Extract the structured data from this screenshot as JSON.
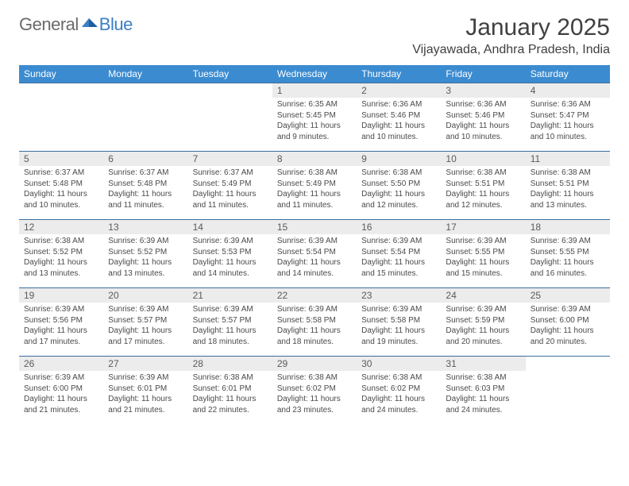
{
  "logo": {
    "text1": "General",
    "text2": "Blue"
  },
  "title": "January 2025",
  "location": "Vijayawada, Andhra Pradesh, India",
  "colors": {
    "header_bg": "#3b8bd0",
    "header_text": "#ffffff",
    "row_border": "#3b6fa0",
    "daynum_bg": "#ececec",
    "logo_blue": "#3b7fc4",
    "logo_gray": "#6a6a6a"
  },
  "fonts": {
    "title_pt": 30,
    "location_pt": 16,
    "dayheader_pt": 12,
    "daynum_pt": 12,
    "details_pt": 10
  },
  "day_headers": [
    "Sunday",
    "Monday",
    "Tuesday",
    "Wednesday",
    "Thursday",
    "Friday",
    "Saturday"
  ],
  "sunrise_label": "Sunrise:",
  "sunset_label": "Sunset:",
  "daylight_label": "Daylight:",
  "weeks": [
    [
      {
        "n": "",
        "sr": "",
        "ss": "",
        "dl": ""
      },
      {
        "n": "",
        "sr": "",
        "ss": "",
        "dl": ""
      },
      {
        "n": "",
        "sr": "",
        "ss": "",
        "dl": ""
      },
      {
        "n": "1",
        "sr": "6:35 AM",
        "ss": "5:45 PM",
        "dl": "11 hours and 9 minutes."
      },
      {
        "n": "2",
        "sr": "6:36 AM",
        "ss": "5:46 PM",
        "dl": "11 hours and 10 minutes."
      },
      {
        "n": "3",
        "sr": "6:36 AM",
        "ss": "5:46 PM",
        "dl": "11 hours and 10 minutes."
      },
      {
        "n": "4",
        "sr": "6:36 AM",
        "ss": "5:47 PM",
        "dl": "11 hours and 10 minutes."
      }
    ],
    [
      {
        "n": "5",
        "sr": "6:37 AM",
        "ss": "5:48 PM",
        "dl": "11 hours and 10 minutes."
      },
      {
        "n": "6",
        "sr": "6:37 AM",
        "ss": "5:48 PM",
        "dl": "11 hours and 11 minutes."
      },
      {
        "n": "7",
        "sr": "6:37 AM",
        "ss": "5:49 PM",
        "dl": "11 hours and 11 minutes."
      },
      {
        "n": "8",
        "sr": "6:38 AM",
        "ss": "5:49 PM",
        "dl": "11 hours and 11 minutes."
      },
      {
        "n": "9",
        "sr": "6:38 AM",
        "ss": "5:50 PM",
        "dl": "11 hours and 12 minutes."
      },
      {
        "n": "10",
        "sr": "6:38 AM",
        "ss": "5:51 PM",
        "dl": "11 hours and 12 minutes."
      },
      {
        "n": "11",
        "sr": "6:38 AM",
        "ss": "5:51 PM",
        "dl": "11 hours and 13 minutes."
      }
    ],
    [
      {
        "n": "12",
        "sr": "6:38 AM",
        "ss": "5:52 PM",
        "dl": "11 hours and 13 minutes."
      },
      {
        "n": "13",
        "sr": "6:39 AM",
        "ss": "5:52 PM",
        "dl": "11 hours and 13 minutes."
      },
      {
        "n": "14",
        "sr": "6:39 AM",
        "ss": "5:53 PM",
        "dl": "11 hours and 14 minutes."
      },
      {
        "n": "15",
        "sr": "6:39 AM",
        "ss": "5:54 PM",
        "dl": "11 hours and 14 minutes."
      },
      {
        "n": "16",
        "sr": "6:39 AM",
        "ss": "5:54 PM",
        "dl": "11 hours and 15 minutes."
      },
      {
        "n": "17",
        "sr": "6:39 AM",
        "ss": "5:55 PM",
        "dl": "11 hours and 15 minutes."
      },
      {
        "n": "18",
        "sr": "6:39 AM",
        "ss": "5:55 PM",
        "dl": "11 hours and 16 minutes."
      }
    ],
    [
      {
        "n": "19",
        "sr": "6:39 AM",
        "ss": "5:56 PM",
        "dl": "11 hours and 17 minutes."
      },
      {
        "n": "20",
        "sr": "6:39 AM",
        "ss": "5:57 PM",
        "dl": "11 hours and 17 minutes."
      },
      {
        "n": "21",
        "sr": "6:39 AM",
        "ss": "5:57 PM",
        "dl": "11 hours and 18 minutes."
      },
      {
        "n": "22",
        "sr": "6:39 AM",
        "ss": "5:58 PM",
        "dl": "11 hours and 18 minutes."
      },
      {
        "n": "23",
        "sr": "6:39 AM",
        "ss": "5:58 PM",
        "dl": "11 hours and 19 minutes."
      },
      {
        "n": "24",
        "sr": "6:39 AM",
        "ss": "5:59 PM",
        "dl": "11 hours and 20 minutes."
      },
      {
        "n": "25",
        "sr": "6:39 AM",
        "ss": "6:00 PM",
        "dl": "11 hours and 20 minutes."
      }
    ],
    [
      {
        "n": "26",
        "sr": "6:39 AM",
        "ss": "6:00 PM",
        "dl": "11 hours and 21 minutes."
      },
      {
        "n": "27",
        "sr": "6:39 AM",
        "ss": "6:01 PM",
        "dl": "11 hours and 21 minutes."
      },
      {
        "n": "28",
        "sr": "6:38 AM",
        "ss": "6:01 PM",
        "dl": "11 hours and 22 minutes."
      },
      {
        "n": "29",
        "sr": "6:38 AM",
        "ss": "6:02 PM",
        "dl": "11 hours and 23 minutes."
      },
      {
        "n": "30",
        "sr": "6:38 AM",
        "ss": "6:02 PM",
        "dl": "11 hours and 24 minutes."
      },
      {
        "n": "31",
        "sr": "6:38 AM",
        "ss": "6:03 PM",
        "dl": "11 hours and 24 minutes."
      },
      {
        "n": "",
        "sr": "",
        "ss": "",
        "dl": ""
      }
    ]
  ]
}
